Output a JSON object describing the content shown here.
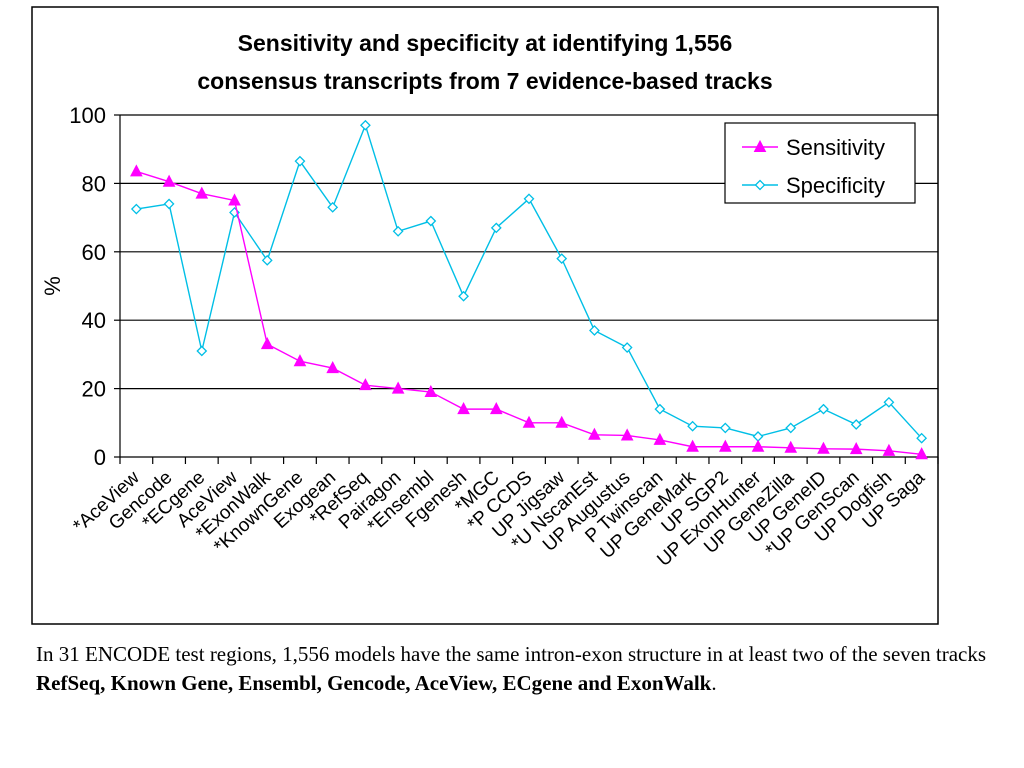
{
  "chart_data": {
    "type": "line",
    "title_lines": [
      "Sensitivity and specificity at identifying 1,556",
      "consensus transcripts from 7 evidence-based tracks"
    ],
    "ylabel": "%",
    "xlabel": "",
    "ylim": [
      0,
      100
    ],
    "yticks": [
      0,
      20,
      40,
      60,
      80,
      100
    ],
    "grid": true,
    "legend_position": "top-right",
    "categories": [
      "*AceView",
      "Gencode",
      "*ECgene",
      "AceView",
      "*ExonWalk",
      "*KnownGene",
      "Exogean",
      "*RefSeq",
      "Pairagon",
      "*Ensembl",
      "Fgenesh",
      "*MGC",
      "*P CCDS",
      "UP Jigsaw",
      "*U NscanEst",
      "UP Augustus",
      "P Twinscan",
      "UP GeneMark",
      "UP SGP2",
      "UP ExonHunter",
      "UP GeneZilla",
      "UP GeneID",
      "*UP GenScan",
      "UP Dogfish",
      "UP Saga"
    ],
    "series": [
      {
        "name": "Sensitivity",
        "color": "#ff00ff",
        "marker": "triangle",
        "values": [
          83.5,
          80.5,
          77,
          75,
          33,
          28,
          26,
          21,
          20,
          19,
          14,
          14,
          10,
          10,
          6.5,
          6.3,
          5,
          3,
          3,
          3,
          2.7,
          2.4,
          2.3,
          1.8,
          0.8
        ]
      },
      {
        "name": "Specificity",
        "color": "#00bfe6",
        "marker": "diamond",
        "values": [
          72.5,
          74,
          31,
          71.5,
          57.5,
          86.5,
          73,
          97,
          66,
          69,
          47,
          67,
          75.5,
          58,
          37,
          32,
          14,
          9,
          8.5,
          6,
          8.5,
          14,
          9.5,
          16,
          5.5
        ]
      }
    ]
  },
  "caption": {
    "text_before": "In 31 ENCODE test regions, 1,556 models have the same intron-exon structure in at least two of the seven tracks ",
    "bold_text": "RefSeq, Known Gene, Ensembl, Gencode, AceView, ECgene and ExonWalk",
    "text_after": "."
  }
}
